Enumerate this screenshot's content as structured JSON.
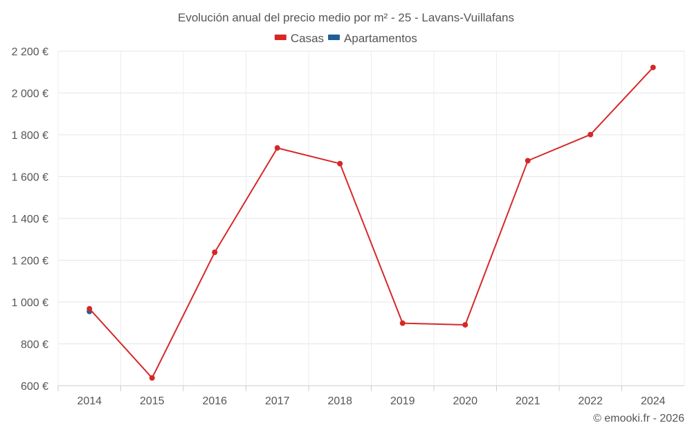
{
  "chart_data": {
    "type": "line",
    "title": "Evolución anual del precio medio por m² - 25 - Lavans-Vuillafans",
    "categories": [
      "2014",
      "2015",
      "2016",
      "2017",
      "2018",
      "2019",
      "2020",
      "2021",
      "2022",
      "2024"
    ],
    "y_ticks": [
      "2 200 €",
      "2 000 €",
      "1 800 €",
      "1 600 €",
      "1 400 €",
      "1 200 €",
      "1 000 €",
      "800 €",
      "600 €"
    ],
    "ylim": [
      600,
      2200
    ],
    "grid": true,
    "legend_position": "top-center",
    "series": [
      {
        "name": "Casas",
        "color": "#d62728",
        "values": [
          968,
          637,
          1238,
          1737,
          1662,
          899,
          891,
          1676,
          1801,
          2122
        ]
      },
      {
        "name": "Apartamentos",
        "color": "#1f5f96",
        "values": [
          955,
          null,
          null,
          null,
          null,
          null,
          null,
          null,
          null,
          null
        ]
      }
    ],
    "credit": "© emooki.fr - 2026"
  }
}
